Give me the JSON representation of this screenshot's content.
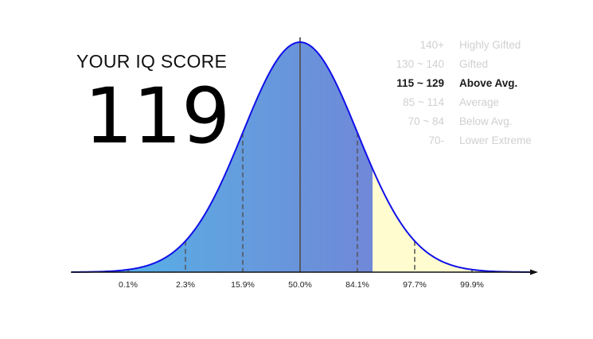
{
  "score": {
    "label": "YOUR IQ SCORE",
    "value": "119"
  },
  "legend": {
    "active_index": 2,
    "items": [
      {
        "range": "140+",
        "category": "Highly Gifted"
      },
      {
        "range": "130 ~ 140",
        "category": "Gifted"
      },
      {
        "range": "115 ~ 129",
        "category": "Above Avg."
      },
      {
        "range": "85 ~ 114",
        "category": "Average"
      },
      {
        "range": "70 ~ 84",
        "category": "Below Avg."
      },
      {
        "range": "70-",
        "category": "Lower Extreme"
      }
    ]
  },
  "chart_data": {
    "type": "area",
    "distribution": "normal",
    "mean": 100,
    "sd": 15,
    "score": 119,
    "markers": [
      {
        "sigma": -3,
        "label": "0.1%"
      },
      {
        "sigma": -2,
        "label": "2.3%"
      },
      {
        "sigma": -1,
        "label": "15.9%"
      },
      {
        "sigma": 0,
        "label": "50.0%"
      },
      {
        "sigma": 1,
        "label": "84.1%"
      },
      {
        "sigma": 2,
        "label": "97.7%"
      },
      {
        "sigma": 3,
        "label": "99.9%"
      }
    ],
    "colors": {
      "gradient_start": "#4db8ec",
      "gradient_mid": "#62a0df",
      "gradient_end": "#7088d8",
      "tail_fill": "#fffccf",
      "curve_stroke": "#1010e8",
      "axis": "#111111",
      "marker_line": "#555555",
      "mean_line": "#555555"
    }
  }
}
